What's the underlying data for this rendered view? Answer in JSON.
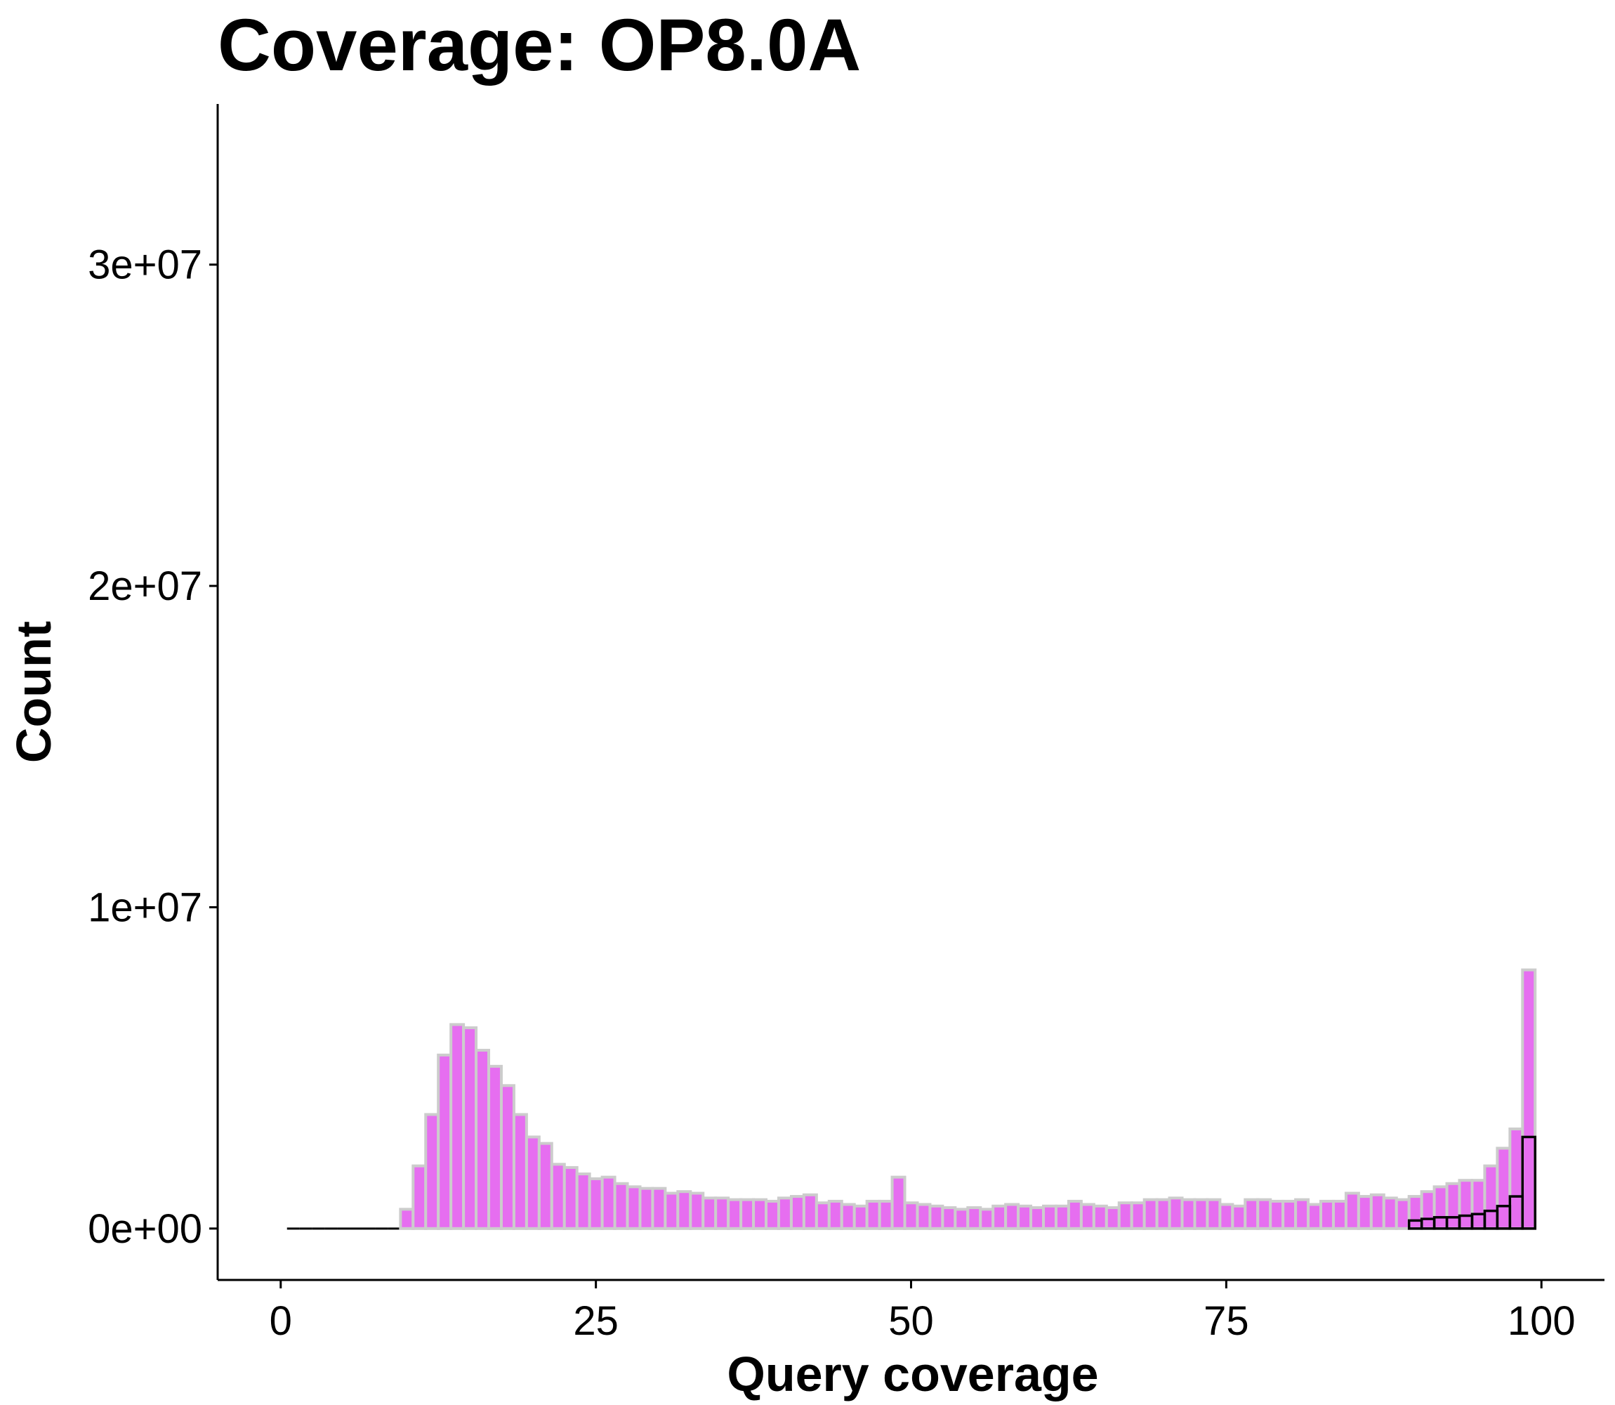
{
  "chart_data": {
    "type": "bar",
    "title": "Coverage: OP8.0A",
    "xlabel": "Query coverage",
    "ylabel": "Count",
    "xlim": [
      -5,
      105
    ],
    "ylim": [
      -1600000,
      35000000
    ],
    "x_ticks": [
      0,
      25,
      50,
      75,
      100
    ],
    "x_tick_labels": [
      "0",
      "25",
      "50",
      "75",
      "100"
    ],
    "y_ticks": [
      0,
      10000000,
      20000000,
      30000000
    ],
    "y_tick_labels": [
      "0e+00",
      "1e+07",
      "2e+07",
      "3e+07"
    ],
    "grid": false,
    "legend": "none",
    "bin_width": 1,
    "colors": {
      "fill": "#E66EF0",
      "outline": "#CCCCCC",
      "overlay_outline": "#000000"
    },
    "series": [
      {
        "x": [
          1,
          2,
          3,
          4,
          5,
          6,
          7,
          8,
          9,
          10,
          11,
          12,
          13,
          14,
          15,
          16,
          17,
          18,
          19,
          20,
          21,
          22,
          23,
          24,
          25,
          26,
          27,
          28,
          29,
          30,
          31,
          32,
          33,
          34,
          35,
          36,
          37,
          38,
          39,
          40,
          41,
          42,
          43,
          44,
          45,
          46,
          47,
          48,
          49,
          50,
          51,
          52,
          53,
          54,
          55,
          56,
          57,
          58,
          59,
          60,
          61,
          62,
          63,
          64,
          65,
          66,
          67,
          68,
          69,
          70,
          71,
          72,
          73,
          74,
          75,
          76,
          77,
          78,
          79,
          80,
          81,
          82,
          83,
          84,
          85,
          86,
          87,
          88,
          89,
          90,
          91,
          92,
          93,
          94,
          95,
          96,
          97,
          98,
          99
        ],
        "values": [
          0,
          0,
          0,
          0,
          0,
          0,
          0,
          0,
          0,
          600000,
          1950000,
          3550000,
          5400000,
          6350000,
          6250000,
          5550000,
          5050000,
          4450000,
          3550000,
          2850000,
          2650000,
          2000000,
          1900000,
          1700000,
          1550000,
          1600000,
          1400000,
          1300000,
          1250000,
          1250000,
          1100000,
          1150000,
          1100000,
          950000,
          950000,
          900000,
          900000,
          900000,
          850000,
          950000,
          1000000,
          1050000,
          800000,
          850000,
          750000,
          700000,
          850000,
          850000,
          1600000,
          800000,
          750000,
          700000,
          650000,
          600000,
          650000,
          600000,
          700000,
          750000,
          700000,
          650000,
          700000,
          700000,
          850000,
          750000,
          700000,
          650000,
          800000,
          800000,
          900000,
          900000,
          950000,
          900000,
          900000,
          900000,
          750000,
          700000,
          900000,
          900000,
          850000,
          850000,
          900000,
          750000,
          850000,
          850000,
          1100000,
          1000000,
          1050000,
          950000,
          900000,
          1000000,
          1150000,
          1300000,
          1400000,
          1500000,
          1500000,
          1950000,
          2500000,
          3100000,
          8050000
        ]
      },
      {
        "x": [
          90,
          91,
          92,
          93,
          94,
          95,
          96,
          97,
          98,
          99
        ],
        "values": [
          250000,
          300000,
          350000,
          350000,
          400000,
          450000,
          550000,
          700000,
          1000000,
          2850000
        ]
      }
    ]
  }
}
